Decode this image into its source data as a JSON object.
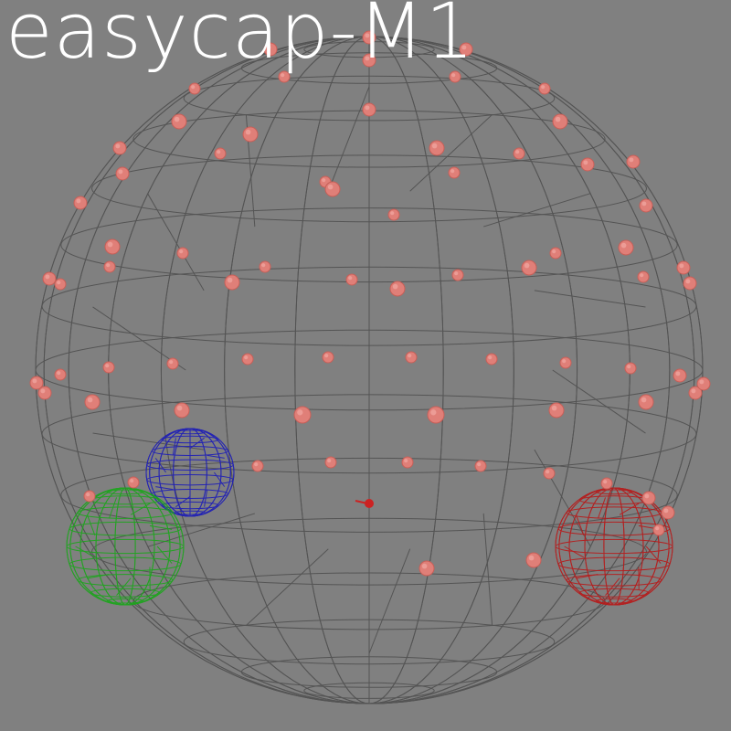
{
  "title": "easycap-M1",
  "colors": {
    "background": "#808080",
    "head_mesh": "#4a4a4a",
    "electrode": "#e07f78",
    "electrode_dark": "#c65f58",
    "fiducial_blue": "#1c1cb8",
    "fiducial_green": "#1aa61a",
    "fiducial_red": "#b81818",
    "origin_marker": "#cc2222"
  }
}
